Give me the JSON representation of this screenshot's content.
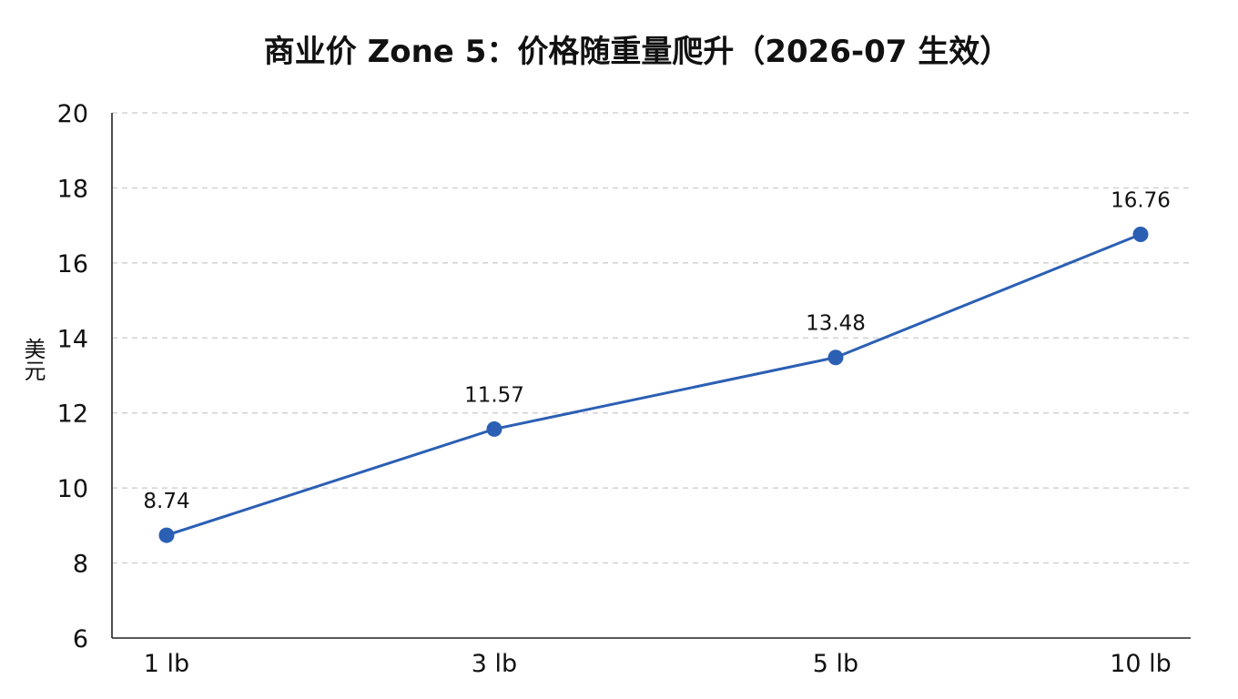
{
  "chart_data": {
    "type": "line",
    "title": "商业价 Zone 5：价格随重量爬升（2026-07 生效）",
    "xlabel": "",
    "ylabel": "美元",
    "categories": [
      "1 lb",
      "3 lb",
      "5 lb",
      "10 lb"
    ],
    "series": [
      {
        "values": [
          8.74,
          11.57,
          13.48,
          16.76
        ],
        "color": "#2b5fb4"
      }
    ],
    "data_labels": [
      "8.74",
      "11.57",
      "13.48",
      "16.76"
    ],
    "ylim": [
      6,
      20
    ],
    "yticks": [
      6,
      8,
      10,
      12,
      14,
      16,
      18,
      20
    ],
    "grid": true,
    "legend": "none"
  }
}
